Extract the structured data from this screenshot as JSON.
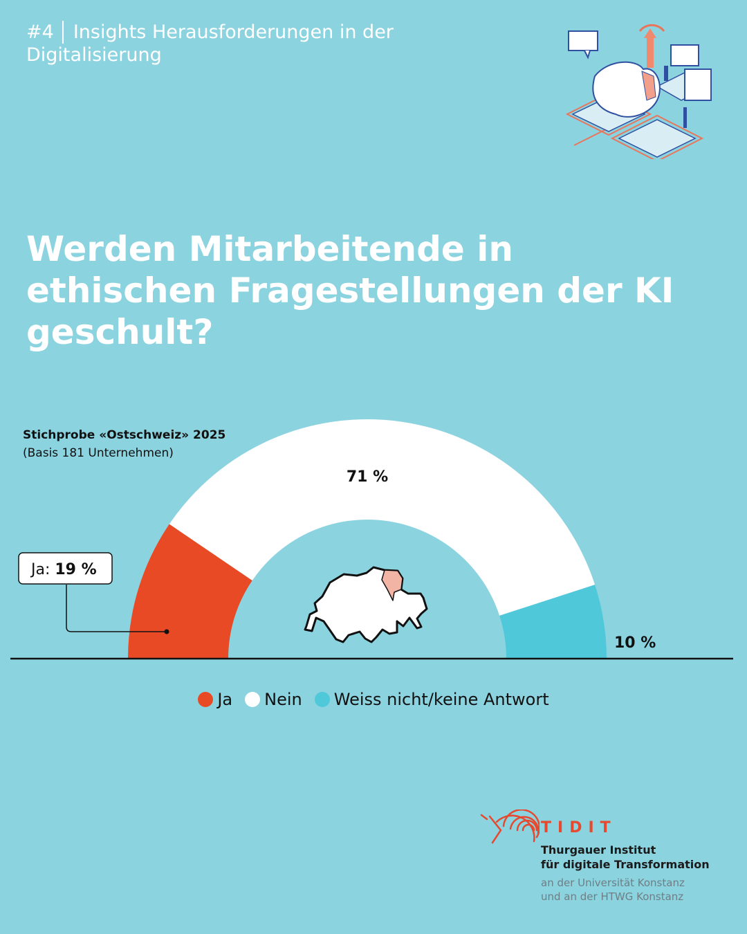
{
  "header": {
    "series_number": "#4",
    "series_title_line1": "Insights Herausforderungen in der",
    "series_title_line2": "Digitalisierung"
  },
  "question": {
    "line1": "Werden Mitarbeitende in",
    "line2": "ethischen Fragestellungen der KI",
    "line3": "geschult?"
  },
  "sample": {
    "title": "Stichprobe «Ostschweiz» 2025",
    "basis": "(Basis 181 Unternehmen)"
  },
  "chart_data": {
    "type": "pie",
    "subtype": "half-donut",
    "categories": [
      "Ja",
      "Nein",
      "Weiss nicht/keine Antwort"
    ],
    "values": [
      19,
      71,
      10
    ],
    "unit": "%",
    "labels": [
      "19 %",
      "71 %",
      "10 %"
    ],
    "callout": {
      "prefix": "Ja: ",
      "value": "19 %"
    },
    "colors": [
      "#e84a25",
      "#ffffff",
      "#4fc8da"
    ],
    "legend_position": "bottom-center"
  },
  "colors": {
    "background": "#8cd3e0",
    "accent": "#e84a25",
    "text_dark": "#111111"
  },
  "logo": {
    "wordmark": "TIDIT",
    "name_line1": "Thurgauer Institut",
    "name_line2": "für digitale Transformation",
    "affiliation_line1": "an der Universität Konstanz",
    "affiliation_line2": "und an der HTWG Konstanz"
  },
  "icons": [
    "switzerland-map-icon",
    "digitalisation-illustration-icon",
    "tidit-logo-icon"
  ]
}
